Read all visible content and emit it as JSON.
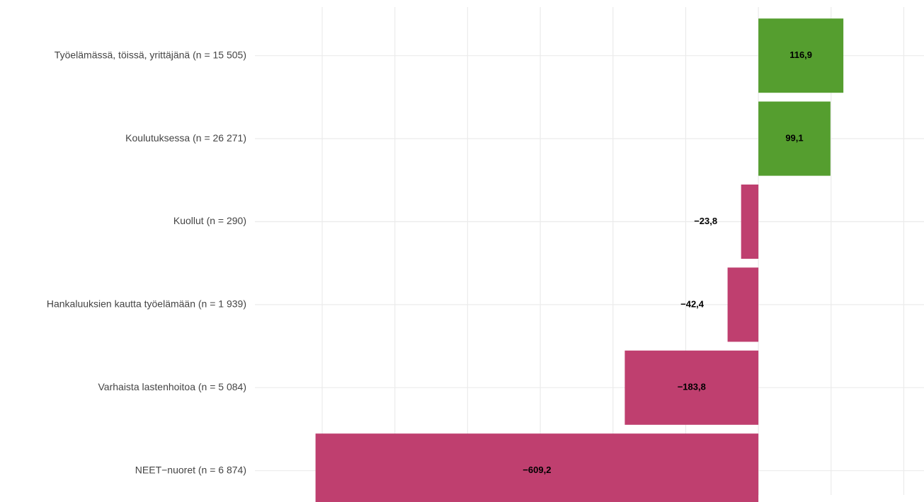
{
  "chart_data": {
    "type": "barh",
    "categories": [
      "Työelämässä, töissä, yrittäjänä (n = 15 505)",
      "Koulutuksessa (n = 26 271)",
      "Kuollut (n = 290)",
      "Hankaluuksien kautta työelämään (n = 1 939)",
      "Varhaista lastenhoitoa (n = 5 084)",
      "NEET−nuoret (n = 6 874)"
    ],
    "values": [
      116.9,
      99.1,
      -23.8,
      -42.4,
      -183.8,
      -609.2
    ],
    "value_labels": [
      "116,9",
      "99,1",
      "−23,8",
      "−42,4",
      "−183,8",
      "−609,2"
    ],
    "colors": [
      "#559e2f",
      "#559e2f",
      "#bf3f6f",
      "#bf3f6f",
      "#bf3f6f",
      "#bf3f6f"
    ],
    "xlim": [
      -640,
      220
    ],
    "xticks": [
      -600,
      -500,
      -400,
      -300,
      -200,
      -100,
      0,
      100,
      200
    ],
    "grid": true
  }
}
